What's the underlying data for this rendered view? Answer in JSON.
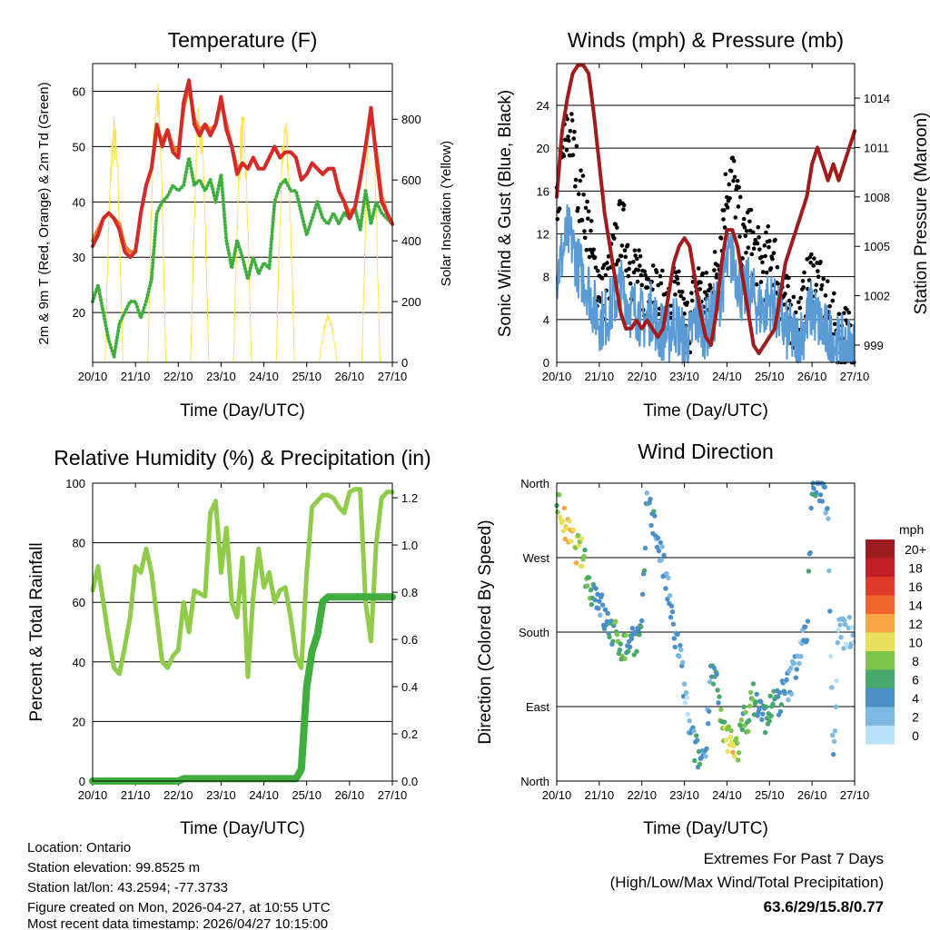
{
  "colors": {
    "temp2m": "#d42a2a",
    "temp9m": "#f07f2a",
    "dewpoint": "#3fae3f",
    "solar": "#ffe24d",
    "gust": "#000000",
    "wind": "#5b9bd5",
    "pressure": "#a01c1c",
    "rh": "#8fcc4a",
    "rain": "#3fae3f",
    "extremes": "#c8202a"
  },
  "x_tick_labels": [
    "20/10",
    "21/10",
    "22/10",
    "23/10",
    "24/10",
    "25/10",
    "26/10",
    "27/10"
  ],
  "time_step_days": 0.125,
  "chart_data": [
    {
      "type": "line",
      "title": "Temperature (F)",
      "xlabel": "Time (Day/UTC)",
      "ylabel": "2m & 9m T (Red, Orange) & 2m Td (Green)",
      "ylabel_right": "Solar Insolation (Yellow)",
      "ylim": [
        11,
        65
      ],
      "ylim_right": [
        0,
        983
      ],
      "yticks": [
        "20",
        "30",
        "40",
        "50",
        "60"
      ],
      "yticks_right": [
        "0",
        "200",
        "400",
        "600",
        "800"
      ],
      "series": [
        {
          "name": "2m T",
          "values": [
            32,
            34,
            37,
            38,
            37,
            35,
            31,
            30,
            31,
            38,
            43,
            46,
            54,
            50,
            53,
            49,
            48,
            58,
            62,
            54,
            52,
            54,
            52,
            54,
            59,
            53,
            50,
            45,
            47,
            46,
            48,
            46,
            46,
            48,
            50,
            48,
            49,
            49,
            48,
            44,
            45,
            47,
            46,
            45,
            46,
            46,
            42,
            40,
            37,
            39,
            44,
            50,
            57,
            48,
            40,
            38,
            36
          ]
        },
        {
          "name": "9m T",
          "values": [
            33,
            35,
            37,
            38,
            37,
            36,
            32,
            31,
            31,
            38,
            43,
            46,
            53,
            51,
            53,
            50,
            49,
            57,
            61,
            55,
            53,
            54,
            53,
            54,
            58,
            54,
            50,
            46,
            47,
            46,
            48,
            46,
            46,
            48,
            50,
            48,
            49,
            49,
            48,
            44,
            45,
            47,
            46,
            45,
            46,
            46,
            42,
            40,
            38,
            39,
            44,
            50,
            56,
            49,
            41,
            38,
            36
          ]
        },
        {
          "name": "2m Td",
          "values": [
            22,
            25,
            20,
            15,
            12,
            18,
            20,
            22,
            22,
            19,
            22,
            26,
            38,
            40,
            41,
            43,
            42,
            43,
            48,
            43,
            44,
            42,
            44,
            40,
            45,
            33,
            28,
            33,
            30,
            26,
            30,
            27,
            29,
            28,
            40,
            43,
            44,
            42,
            42,
            38,
            34,
            37,
            40,
            37,
            36,
            38,
            36,
            38,
            37,
            39,
            35,
            42,
            36,
            40,
            38,
            37,
            36
          ]
        },
        {
          "name": "Solar Insolation daily peaks",
          "values": [
            820,
            960,
            880,
            830,
            840,
            160,
            900
          ]
        }
      ]
    },
    {
      "type": "line",
      "title": "Winds (mph) & Pressure (mb)",
      "xlabel": "Time (Day/UTC)",
      "ylabel": "Sonic Wind & Gust (Blue, Black)",
      "ylabel_right": "Station Pressure (Maroon)",
      "ylim": [
        0,
        27.9
      ],
      "ylim_right": [
        997.95,
        1016.1
      ],
      "yticks": [
        "0",
        "4",
        "8",
        "12",
        "16",
        "20",
        "24"
      ],
      "yticks_right": [
        "999",
        "1002",
        "1005",
        "1008",
        "1011",
        "1014"
      ],
      "series": [
        {
          "name": "Gust",
          "values": [
            14,
            18,
            21,
            20,
            16,
            14,
            12,
            8,
            7,
            6,
            8,
            10,
            12,
            11,
            8,
            8,
            6,
            7,
            8,
            5,
            5,
            4,
            6,
            5,
            3,
            3,
            6,
            7,
            5,
            6,
            8,
            12,
            16,
            17,
            14,
            10,
            12,
            10,
            9,
            8,
            10,
            9,
            6,
            5,
            4,
            3,
            4,
            6,
            8,
            7,
            5,
            4,
            3,
            2,
            2,
            2,
            1
          ]
        },
        {
          "name": "Sonic Wind",
          "values": [
            8,
            10,
            12,
            11,
            9,
            8,
            7,
            5,
            4,
            4,
            5,
            6,
            7,
            6,
            5,
            5,
            4,
            4,
            5,
            3,
            3,
            2.5,
            4,
            3,
            2,
            2,
            4,
            4,
            3,
            4,
            5,
            7,
            9,
            10,
            8,
            6,
            7,
            6,
            5,
            5,
            6,
            5,
            4,
            3,
            2.5,
            2,
            2.5,
            4,
            5,
            4,
            3,
            2.5,
            2,
            1.5,
            1.5,
            1.5,
            1
          ]
        },
        {
          "name": "Station Pressure",
          "values": [
            1008,
            1012,
            1014,
            1015.5,
            1016,
            1016,
            1015.5,
            1013,
            1010,
            1007,
            1005,
            1003,
            1001,
            1000,
            1000,
            1000.5,
            1000,
            1000.5,
            1000,
            999.5,
            1000,
            1002,
            1004,
            1005,
            1005.5,
            1005,
            1003,
            1001,
            999.5,
            999,
            1001,
            1004,
            1006,
            1006,
            1005,
            1003,
            1001,
            999,
            998.5,
            999,
            999.5,
            1000,
            1002,
            1004,
            1005,
            1006,
            1007,
            1008,
            1010,
            1011,
            1010,
            1009,
            1010,
            1009,
            1010,
            1011,
            1012
          ]
        }
      ]
    },
    {
      "type": "line",
      "title": "Relative Humidity (%) & Precipitation (in)",
      "xlabel": "Time (Day/UTC)",
      "ylabel": "Percent & Total Rainfall",
      "ylim": [
        0,
        100
      ],
      "ylim_right": [
        0,
        1.262
      ],
      "yticks": [
        "0",
        "20",
        "40",
        "60",
        "80",
        "100"
      ],
      "yticks_right": [
        "0.0",
        "0.2",
        "0.4",
        "0.6",
        "0.8",
        "1.0",
        "1.2"
      ],
      "series": [
        {
          "name": "Relative Humidity",
          "values": [
            64,
            72,
            60,
            48,
            38,
            36,
            45,
            55,
            72,
            70,
            78,
            70,
            55,
            40,
            38,
            42,
            44,
            60,
            50,
            64,
            63,
            62,
            90,
            94,
            70,
            85,
            60,
            55,
            75,
            35,
            62,
            78,
            65,
            70,
            60,
            64,
            65,
            55,
            42,
            38,
            70,
            92,
            94,
            96,
            96,
            95,
            92,
            90,
            97,
            98,
            98,
            60,
            47,
            80,
            95,
            97,
            97
          ]
        },
        {
          "name": "Total Precipitation",
          "values": [
            0,
            0,
            0,
            0,
            0,
            0,
            0,
            0,
            0,
            0,
            0,
            0,
            0,
            0,
            0,
            0,
            0,
            0.01,
            0.01,
            0.01,
            0.01,
            0.01,
            0.01,
            0.01,
            0.01,
            0.01,
            0.01,
            0.01,
            0.01,
            0.01,
            0.01,
            0.01,
            0.01,
            0.01,
            0.01,
            0.01,
            0.01,
            0.01,
            0.01,
            0.05,
            0.4,
            0.55,
            0.62,
            0.76,
            0.78,
            0.78,
            0.78,
            0.78,
            0.78,
            0.78,
            0.78,
            0.78,
            0.78,
            0.78,
            0.78,
            0.78,
            0.78
          ]
        }
      ]
    },
    {
      "type": "scatter",
      "title": "Wind Direction",
      "xlabel": "Time (Day/UTC)",
      "ylabel": "Direction (Colored By Speed)",
      "ylim": [
        0,
        360
      ],
      "yticks": [
        "North",
        "East",
        "South",
        "West",
        "North"
      ],
      "legend": {
        "title": "mph",
        "labels": [
          "20+",
          "18",
          "16",
          "14",
          "12",
          "10",
          "8",
          "6",
          "4",
          "2",
          "0"
        ],
        "colors": [
          "#9b1b1e",
          "#c01f26",
          "#de3a2a",
          "#f0652c",
          "#f7a646",
          "#e8e05a",
          "#7dc44c",
          "#46a86b",
          "#4a8fc8",
          "#7cb8e4",
          "#b9e1f7"
        ],
        "placement": "right"
      },
      "series": [
        {
          "name": "Direction (deg)",
          "values": [
            340,
            320,
            300,
            290,
            280,
            270,
            235,
            230,
            220,
            195,
            185,
            175,
            165,
            160,
            175,
            170,
            180,
            350,
            320,
            290,
            260,
            225,
            180,
            160,
            110,
            60,
            40,
            25,
            40,
            140,
            120,
            60,
            50,
            50,
            40,
            70,
            80,
            100,
            90,
            75,
            85,
            95,
            100,
            110,
            120,
            145,
            165,
            175,
            350,
            355,
            355,
            330,
            20,
            200,
            175,
            180,
            185
          ]
        }
      ]
    }
  ],
  "footer": {
    "location": "Location: Ontario",
    "elevation": "Station elevation: 99.8525 m",
    "latlon": "Station lat/lon: 43.2594; -77.3733",
    "created": "Figure created on Mon, 2026-04-27, at 10:55 UTC",
    "recent": "Most recent data timestamp: 2026/04/27 10:15:00"
  },
  "extremes": {
    "title": "Extremes For Past 7 Days",
    "subtitle": "(High/Low/Max Wind/Total Precipitation)",
    "values": "63.6/29/15.8/0.77"
  }
}
